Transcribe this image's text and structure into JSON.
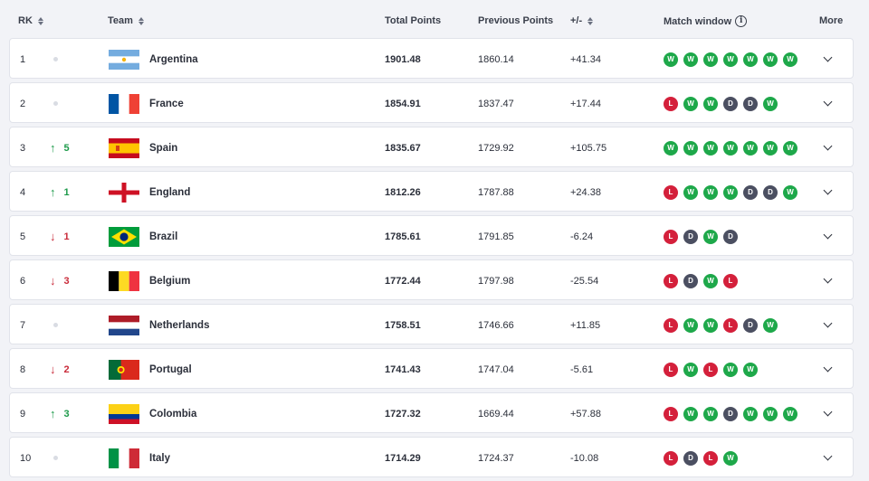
{
  "header": {
    "rank": "RK",
    "team": "Team",
    "total": "Total Points",
    "previous": "Previous Points",
    "diff": "+/-",
    "match": "Match window",
    "more": "More"
  },
  "colors": {
    "win": "#1ea84a",
    "loss": "#d4203b",
    "draw": "#4b4f61",
    "up": "#1d9a4a",
    "down": "#c92b3a"
  },
  "rows": [
    {
      "rank": "1",
      "move": "none",
      "change": "",
      "flag": "argentina",
      "team": "Argentina",
      "total": "1901.48",
      "previous": "1860.14",
      "diff": "+41.34",
      "results": [
        "W",
        "W",
        "W",
        "W",
        "W",
        "W",
        "W"
      ]
    },
    {
      "rank": "2",
      "move": "none",
      "change": "",
      "flag": "france",
      "team": "France",
      "total": "1854.91",
      "previous": "1837.47",
      "diff": "+17.44",
      "results": [
        "L",
        "W",
        "W",
        "D",
        "D",
        "W"
      ]
    },
    {
      "rank": "3",
      "move": "up",
      "change": "5",
      "flag": "spain",
      "team": "Spain",
      "total": "1835.67",
      "previous": "1729.92",
      "diff": "+105.75",
      "results": [
        "W",
        "W",
        "W",
        "W",
        "W",
        "W",
        "W"
      ]
    },
    {
      "rank": "4",
      "move": "up",
      "change": "1",
      "flag": "england",
      "team": "England",
      "total": "1812.26",
      "previous": "1787.88",
      "diff": "+24.38",
      "results": [
        "L",
        "W",
        "W",
        "W",
        "D",
        "D",
        "W"
      ]
    },
    {
      "rank": "5",
      "move": "down",
      "change": "1",
      "flag": "brazil",
      "team": "Brazil",
      "total": "1785.61",
      "previous": "1791.85",
      "diff": "-6.24",
      "results": [
        "L",
        "D",
        "W",
        "D"
      ]
    },
    {
      "rank": "6",
      "move": "down",
      "change": "3",
      "flag": "belgium",
      "team": "Belgium",
      "total": "1772.44",
      "previous": "1797.98",
      "diff": "-25.54",
      "results": [
        "L",
        "D",
        "W",
        "L"
      ]
    },
    {
      "rank": "7",
      "move": "none",
      "change": "",
      "flag": "netherlands",
      "team": "Netherlands",
      "total": "1758.51",
      "previous": "1746.66",
      "diff": "+11.85",
      "results": [
        "L",
        "W",
        "W",
        "L",
        "D",
        "W"
      ]
    },
    {
      "rank": "8",
      "move": "down",
      "change": "2",
      "flag": "portugal",
      "team": "Portugal",
      "total": "1741.43",
      "previous": "1747.04",
      "diff": "-5.61",
      "results": [
        "L",
        "W",
        "L",
        "W",
        "W"
      ]
    },
    {
      "rank": "9",
      "move": "up",
      "change": "3",
      "flag": "colombia",
      "team": "Colombia",
      "total": "1727.32",
      "previous": "1669.44",
      "diff": "+57.88",
      "results": [
        "L",
        "W",
        "W",
        "D",
        "W",
        "W",
        "W"
      ]
    },
    {
      "rank": "10",
      "move": "none",
      "change": "",
      "flag": "italy",
      "team": "Italy",
      "total": "1714.29",
      "previous": "1724.37",
      "diff": "-10.08",
      "results": [
        "L",
        "D",
        "L",
        "W"
      ]
    }
  ]
}
